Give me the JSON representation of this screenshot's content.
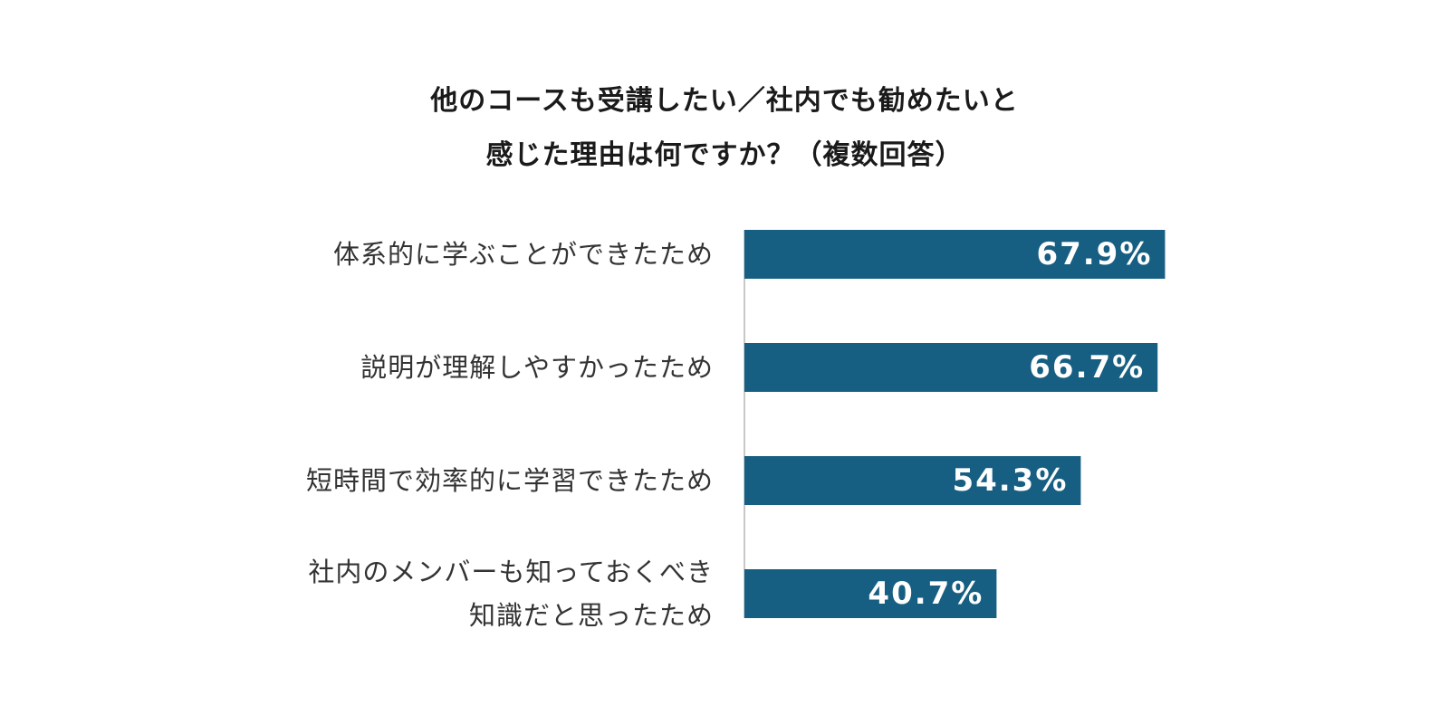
{
  "chart_data": {
    "type": "bar",
    "orientation": "horizontal",
    "title_lines": [
      "他のコースも受講したい／社内でも勧めたいと",
      "感じた理由は何ですか？（複数回答）"
    ],
    "categories": [
      [
        "体系的に学ぶことができたため"
      ],
      [
        "説明が理解しやすかったため"
      ],
      [
        "短時間で効率的に学習できたため"
      ],
      [
        "社内のメンバーも知っておくべき",
        "知識だと思ったため"
      ]
    ],
    "values": [
      67.9,
      66.7,
      54.3,
      40.7
    ],
    "value_labels": [
      "67.9%",
      "66.7%",
      "54.3%",
      "40.7%"
    ],
    "value_unit": "%",
    "xlim": [
      0,
      100
    ],
    "grid": false,
    "legend": "none",
    "bar_color": "#175f82",
    "value_label_color": "#ffffff",
    "axis_color": "#c8c8c8"
  }
}
